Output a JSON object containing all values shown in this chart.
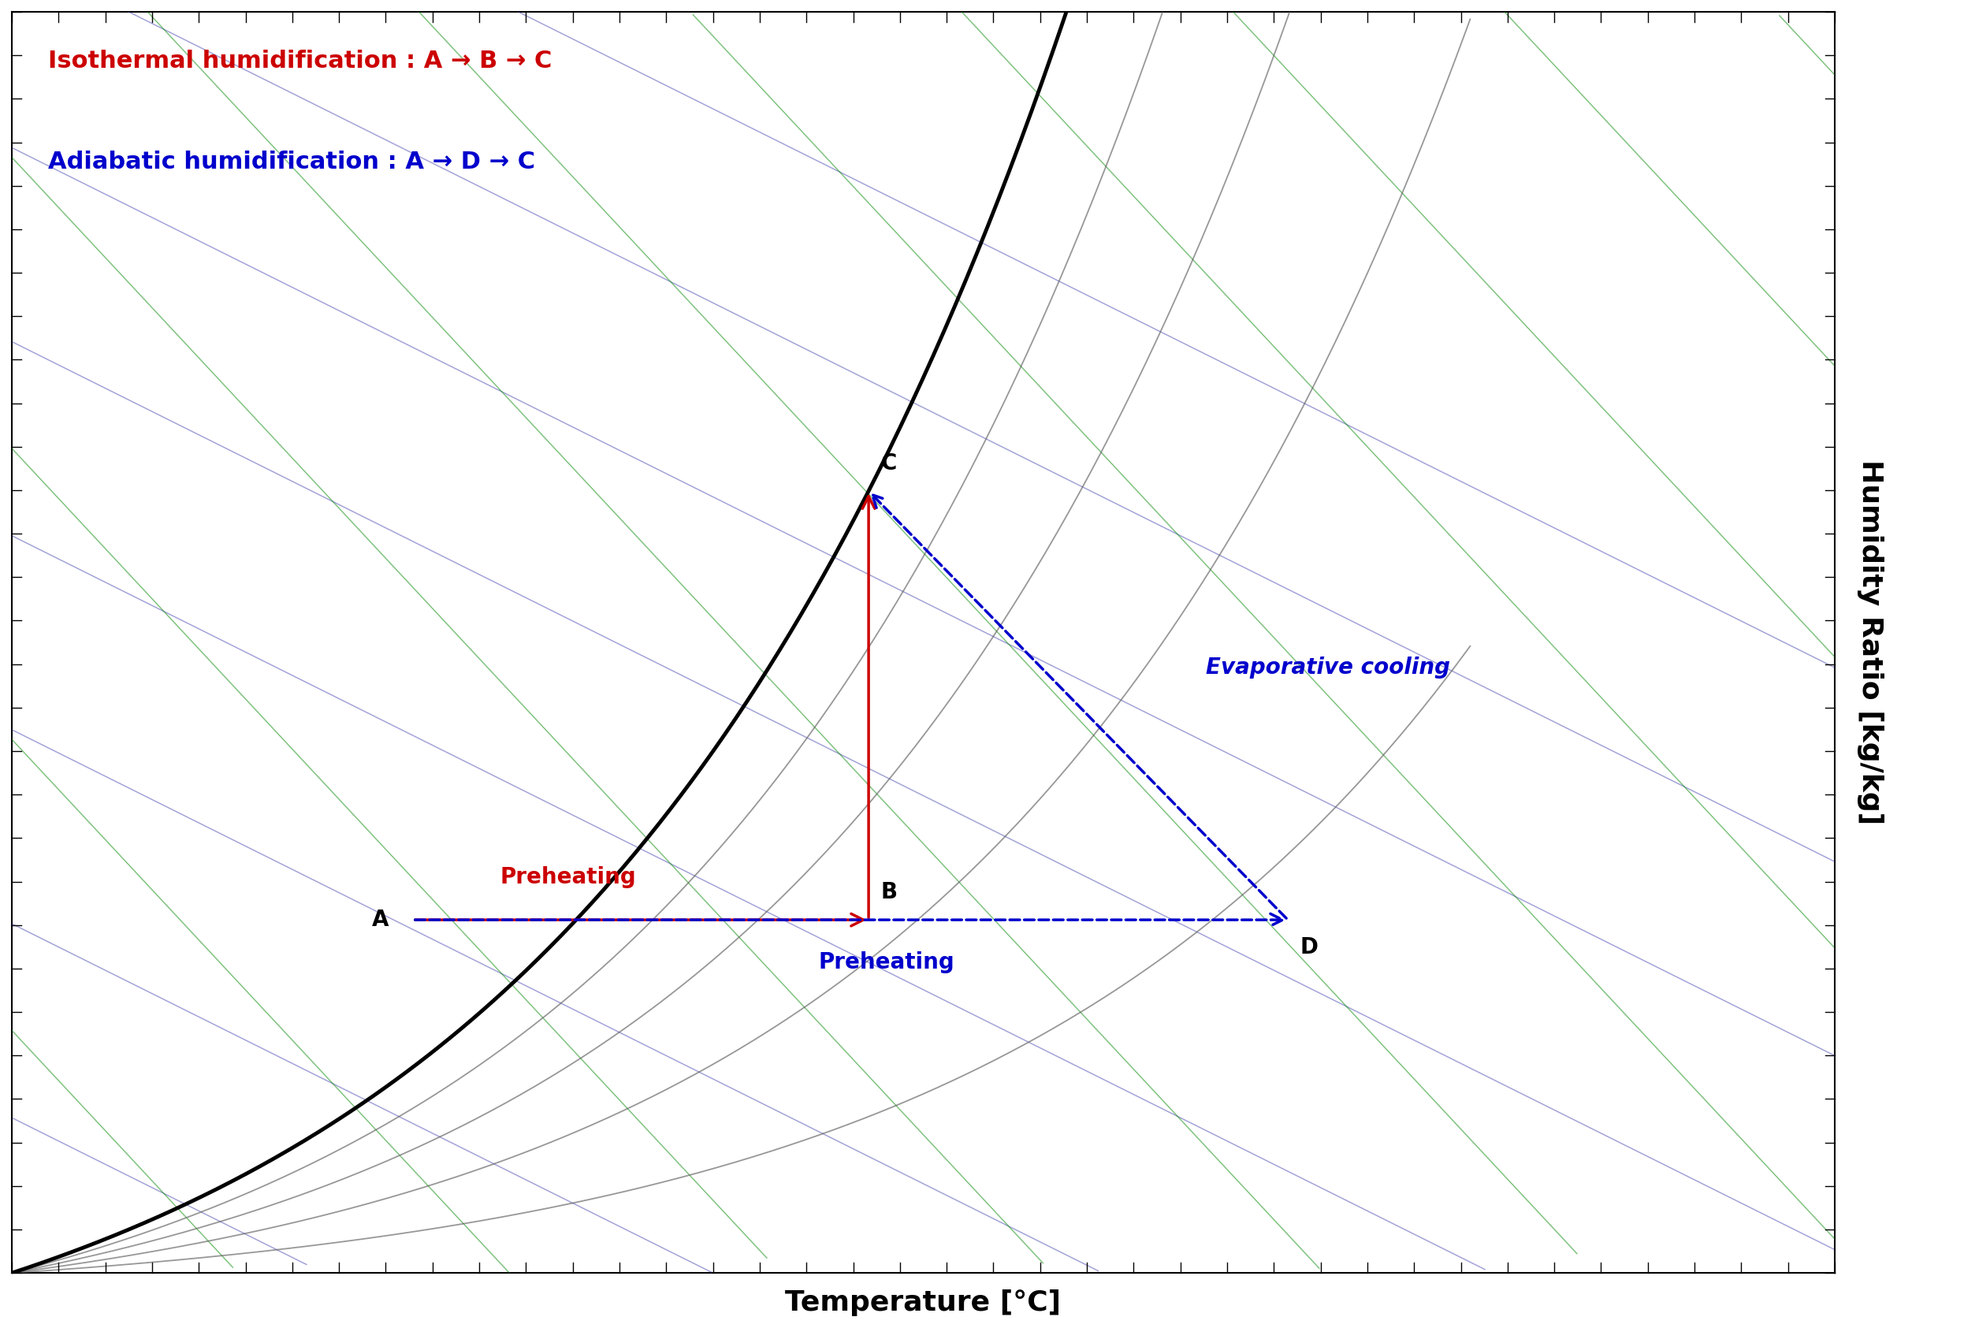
{
  "xlabel": "Temperature [°C]",
  "ylabel": "Humidity Ratio [kg/kg]",
  "bg_color": "#ffffff",
  "legend_isothermal": "Isothermal humidification : A → B → C",
  "legend_adiabatic": "Adiabatic humidification : A → D → C",
  "label_preheating_red": "Preheating",
  "label_preheating_blue": "Preheating",
  "label_evap": "Evaporative cooling",
  "point_A": [
    0.22,
    0.28
  ],
  "point_B": [
    0.47,
    0.28
  ],
  "point_C": [
    0.47,
    0.62
  ],
  "point_D": [
    0.7,
    0.28
  ],
  "sat_curve_color": "#000000",
  "sat_curve_lw": 3.5,
  "rh_curve_color": "#606060",
  "rh_curve_lw": 1.3,
  "wb_line_color": "#3333aa",
  "wb_line_lw": 1.1,
  "enthalpy_line_color": "#008800",
  "enthalpy_line_lw": 1.1,
  "red_color": "#cc0000",
  "blue_color": "#0000cc",
  "arrow_lw": 2.5,
  "point_label_fs": 20,
  "legend_fs": 22,
  "axis_label_fs": 26,
  "annotation_fs": 20
}
